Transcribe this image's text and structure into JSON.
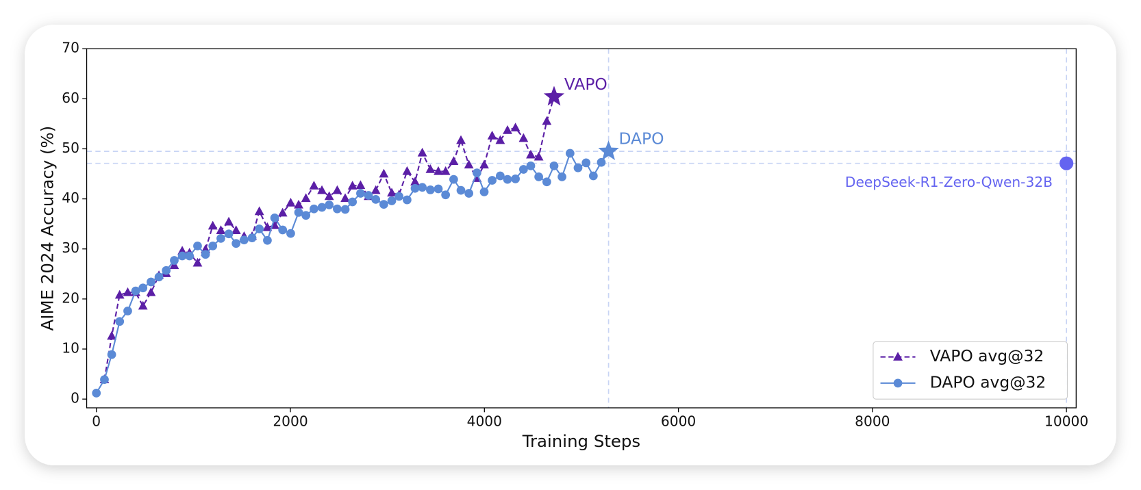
{
  "chart_data": {
    "type": "line",
    "x_label": "Training Steps",
    "y_label": "AIME 2024 Accuracy (%)",
    "xlim": [
      -100,
      10100
    ],
    "ylim": [
      -1.75,
      70
    ],
    "xticks": [
      0,
      2000,
      4000,
      6000,
      8000,
      10000
    ],
    "yticks": [
      0,
      10,
      20,
      30,
      40,
      50,
      60,
      70
    ],
    "grid": false,
    "legend": "lower right",
    "guide_lines": true,
    "series": [
      {
        "name": "VAPO avg@32",
        "color": "#5b1fa6",
        "marker": "triangle",
        "linestyle": "dashed",
        "end_marker": "star",
        "end_label": "VAPO",
        "x": [
          83,
          158,
          240,
          323,
          405,
          480,
          563,
          645,
          720,
          803,
          885,
          960,
          1043,
          1125,
          1200,
          1283,
          1365,
          1440,
          1523,
          1605,
          1680,
          1763,
          1838,
          1920,
          2003,
          2085,
          2160,
          2243,
          2325,
          2400,
          2483,
          2565,
          2640,
          2723,
          2805,
          2880,
          2963,
          3045,
          3120,
          3203,
          3285,
          3360,
          3443,
          3525,
          3600,
          3683,
          3758,
          3840,
          3923,
          3998,
          4080,
          4163,
          4238,
          4320,
          4403,
          4478,
          4560,
          4643,
          4718
        ],
        "values": [
          3.9,
          12.6,
          20.8,
          21.3,
          21.3,
          18.6,
          21.3,
          24.7,
          25.1,
          26.7,
          29.6,
          29.2,
          27.2,
          29.9,
          34.6,
          33.7,
          35.4,
          33.7,
          32.5,
          32.5,
          37.5,
          34.3,
          34.7,
          37.2,
          39.2,
          38.8,
          40.1,
          42.6,
          41.7,
          40.5,
          41.7,
          40.1,
          42.6,
          42.7,
          40.5,
          41.7,
          45.0,
          41.2,
          40.8,
          45.5,
          43.4,
          49.2,
          45.9,
          45.5,
          45.5,
          47.5,
          51.7,
          46.8,
          44.1,
          46.8,
          52.6,
          51.7,
          53.7,
          54.2,
          52.1,
          48.8,
          48.4,
          55.5,
          60.4
        ]
      },
      {
        "name": "DAPO avg@32",
        "color": "#5b8ad6",
        "marker": "circle",
        "linestyle": "solid",
        "end_marker": "star",
        "end_label": "DAPO",
        "x": [
          0,
          83,
          158,
          240,
          323,
          405,
          480,
          563,
          645,
          720,
          803,
          885,
          960,
          1043,
          1125,
          1200,
          1283,
          1365,
          1440,
          1523,
          1605,
          1680,
          1763,
          1838,
          1920,
          2003,
          2085,
          2160,
          2243,
          2325,
          2400,
          2483,
          2565,
          2640,
          2723,
          2805,
          2880,
          2963,
          3045,
          3120,
          3203,
          3285,
          3360,
          3443,
          3525,
          3600,
          3683,
          3758,
          3840,
          3923,
          3998,
          4080,
          4163,
          4238,
          4320,
          4403,
          4478,
          4560,
          4643,
          4718,
          4800,
          4883,
          4965,
          5048,
          5123,
          5205,
          5280
        ],
        "values": [
          1.2,
          3.9,
          8.9,
          15.5,
          17.6,
          21.6,
          22.2,
          23.4,
          24.4,
          25.7,
          27.7,
          28.6,
          28.6,
          30.6,
          28.9,
          30.6,
          32.1,
          33.0,
          31.1,
          31.8,
          32.2,
          34.0,
          31.7,
          36.2,
          33.8,
          33.1,
          37.3,
          36.7,
          38.0,
          38.3,
          38.8,
          38.0,
          37.9,
          39.4,
          41.1,
          40.7,
          39.9,
          38.9,
          39.6,
          40.5,
          39.8,
          42.1,
          42.3,
          41.8,
          42.0,
          40.8,
          43.9,
          41.7,
          41.1,
          45.2,
          41.4,
          43.7,
          44.6,
          43.9,
          44.0,
          45.9,
          46.6,
          44.4,
          43.4,
          46.6,
          44.4,
          49.1,
          46.2,
          47.2,
          44.6,
          47.3,
          49.5
        ]
      }
    ],
    "reference_point": {
      "name": "DeepSeek-R1-Zero-Qwen-32B",
      "x": 10000,
      "y": 47.1,
      "color": "#6464f0"
    }
  }
}
